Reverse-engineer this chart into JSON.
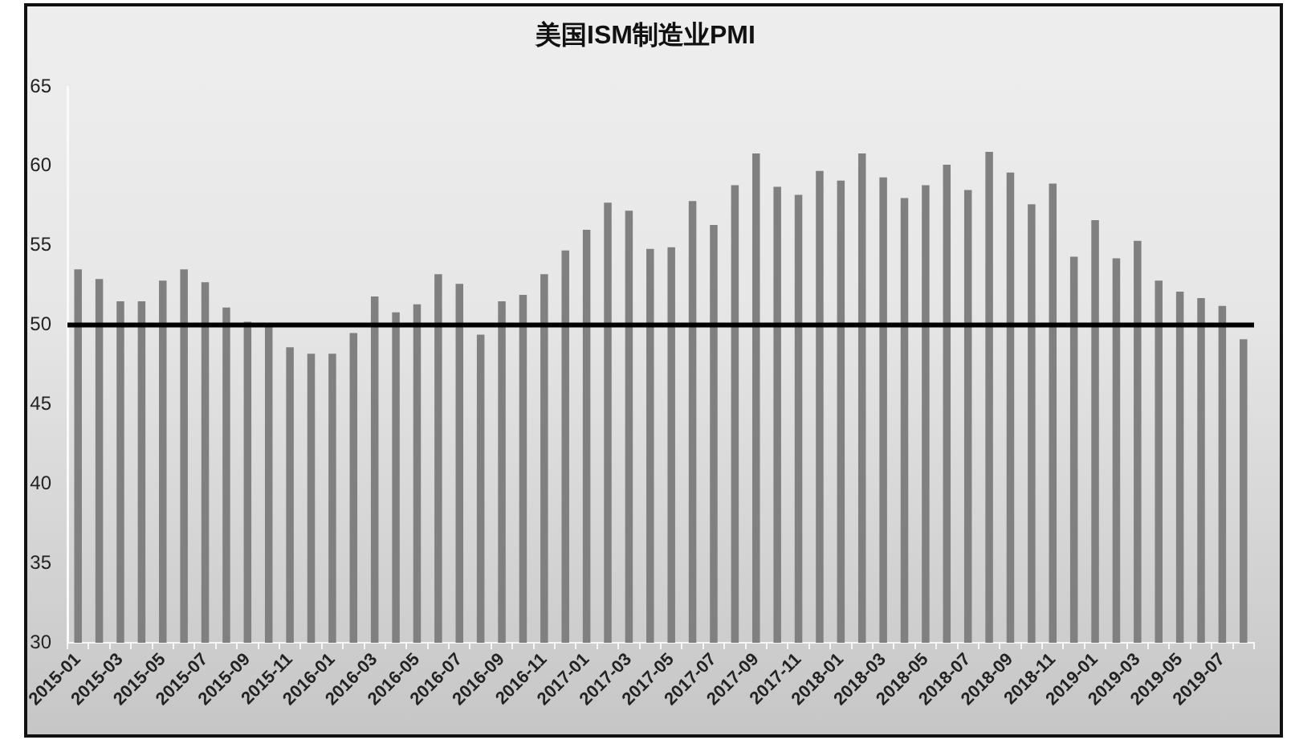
{
  "chart_data": {
    "type": "bar",
    "title": "美国ISM制造业PMI",
    "categories": [
      "2015-01",
      null,
      "2015-03",
      null,
      "2015-05",
      null,
      "2015-07",
      null,
      "2015-09",
      null,
      "2015-11",
      null,
      "2016-01",
      null,
      "2016-03",
      null,
      "2016-05",
      null,
      "2016-07",
      null,
      "2016-09",
      null,
      "2016-11",
      null,
      "2017-01",
      null,
      "2017-03",
      null,
      "2017-05",
      null,
      "2017-07",
      null,
      "2017-09",
      null,
      "2017-11",
      null,
      "2018-01",
      null,
      "2018-03",
      null,
      "2018-05",
      null,
      "2018-07",
      null,
      "2018-09",
      null,
      "2018-11",
      null,
      "2019-01",
      null,
      "2019-03",
      null,
      "2019-05",
      null,
      "2019-07",
      null
    ],
    "values": [
      53.5,
      52.9,
      51.5,
      51.5,
      52.8,
      53.5,
      52.7,
      51.1,
      50.2,
      50.1,
      48.6,
      48.2,
      48.2,
      49.5,
      51.8,
      50.8,
      51.3,
      53.2,
      52.6,
      49.4,
      51.5,
      51.9,
      53.2,
      54.7,
      56.0,
      57.7,
      57.2,
      54.8,
      54.9,
      57.8,
      56.3,
      58.8,
      60.8,
      58.7,
      58.2,
      59.7,
      59.1,
      60.8,
      59.3,
      58.0,
      58.8,
      60.1,
      58.5,
      60.9,
      59.6,
      57.6,
      58.9,
      54.3,
      56.6,
      54.2,
      55.3,
      52.8,
      52.1,
      51.7,
      51.2,
      49.1
    ],
    "color": "#808080",
    "ylim": [
      30,
      65
    ],
    "yticks": [
      30,
      35,
      40,
      45,
      50,
      55,
      60,
      65
    ],
    "grid": false,
    "ref_lines": [
      {
        "axis": "y",
        "value": 50,
        "color": "#000000"
      }
    ]
  }
}
